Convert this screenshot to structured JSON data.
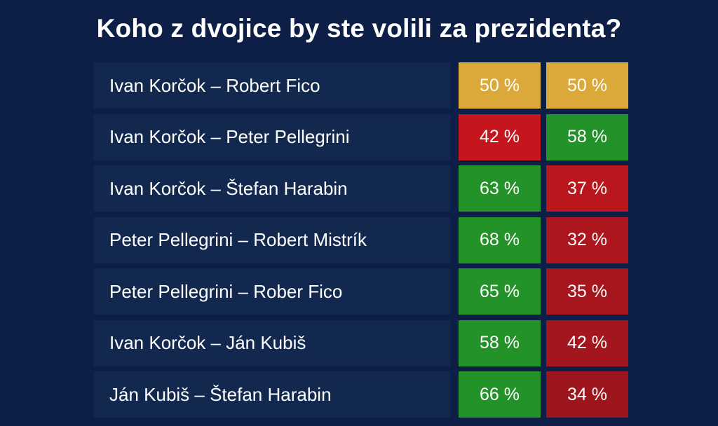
{
  "chart_data": {
    "type": "table",
    "title": "Koho z dvojice by ste volili za prezidenta?",
    "rows": [
      {
        "label": "Ivan Korčok – Robert Fico",
        "a": "50 %",
        "b": "50 %",
        "a_value": 50,
        "b_value": 50,
        "a_color": "#dba83a",
        "b_color": "#dba83a"
      },
      {
        "label": "Ivan Korčok – Peter Pellegrini",
        "a": "42 %",
        "b": "58 %",
        "a_value": 42,
        "b_value": 58,
        "a_color": "#c4161c",
        "b_color": "#239228"
      },
      {
        "label": "Ivan Korčok – Štefan Harabin",
        "a": "63 %",
        "b": "37 %",
        "a_value": 63,
        "b_value": 37,
        "a_color": "#239228",
        "b_color": "#b9161d"
      },
      {
        "label": "Peter Pellegrini – Robert Mistrík",
        "a": "68 %",
        "b": "32 %",
        "a_value": 68,
        "b_value": 32,
        "a_color": "#239228",
        "b_color": "#ad161d"
      },
      {
        "label": "Peter Pellegrini – Rober Fico",
        "a": "65 %",
        "b": "35 %",
        "a_value": 65,
        "b_value": 35,
        "a_color": "#239228",
        "b_color": "#a8161d"
      },
      {
        "label": "Ivan Korčok – Ján Kubiš",
        "a": "58 %",
        "b": "42 %",
        "a_value": 58,
        "b_value": 42,
        "a_color": "#239228",
        "b_color": "#a3161d"
      },
      {
        "label": "Ján Kubiš – Štefan Harabin",
        "a": "66 %",
        "b": "34 %",
        "a_value": 66,
        "b_value": 34,
        "a_color": "#239228",
        "b_color": "#9e161d"
      }
    ]
  }
}
